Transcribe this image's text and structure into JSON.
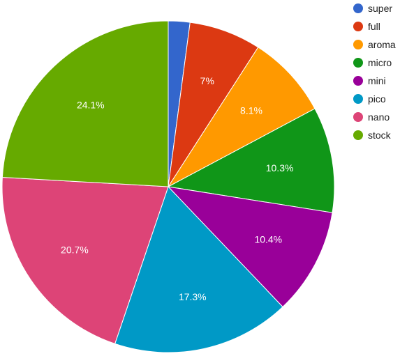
{
  "chart_data": {
    "type": "pie",
    "title": "",
    "series": [
      {
        "name": "super",
        "value": 2.1,
        "label": "",
        "color": "#3366cc"
      },
      {
        "name": "full",
        "value": 7.0,
        "label": "7%",
        "color": "#dc3912"
      },
      {
        "name": "aroma",
        "value": 8.1,
        "label": "8.1%",
        "color": "#ff9900"
      },
      {
        "name": "micro",
        "value": 10.3,
        "label": "10.3%",
        "color": "#109618"
      },
      {
        "name": "mini",
        "value": 10.4,
        "label": "10.4%",
        "color": "#990099"
      },
      {
        "name": "pico",
        "value": 17.3,
        "label": "17.3%",
        "color": "#0099c6"
      },
      {
        "name": "nano",
        "value": 20.7,
        "label": "20.7%",
        "color": "#dd4477"
      },
      {
        "name": "stock",
        "value": 24.1,
        "label": "24.1%",
        "color": "#66aa00"
      }
    ],
    "legend_position": "right",
    "start_angle": "12 o'clock, clockwise"
  }
}
